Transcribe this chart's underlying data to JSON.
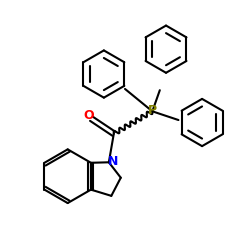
{
  "bg_color": "#ffffff",
  "line_color": "#000000",
  "P_color": "#808000",
  "N_color": "#0000ff",
  "O_color": "#ff0000",
  "line_width": 1.5,
  "fig_size": [
    2.5,
    2.5
  ],
  "dpi": 100,
  "xlim": [
    0,
    10
  ],
  "ylim": [
    0,
    10
  ]
}
